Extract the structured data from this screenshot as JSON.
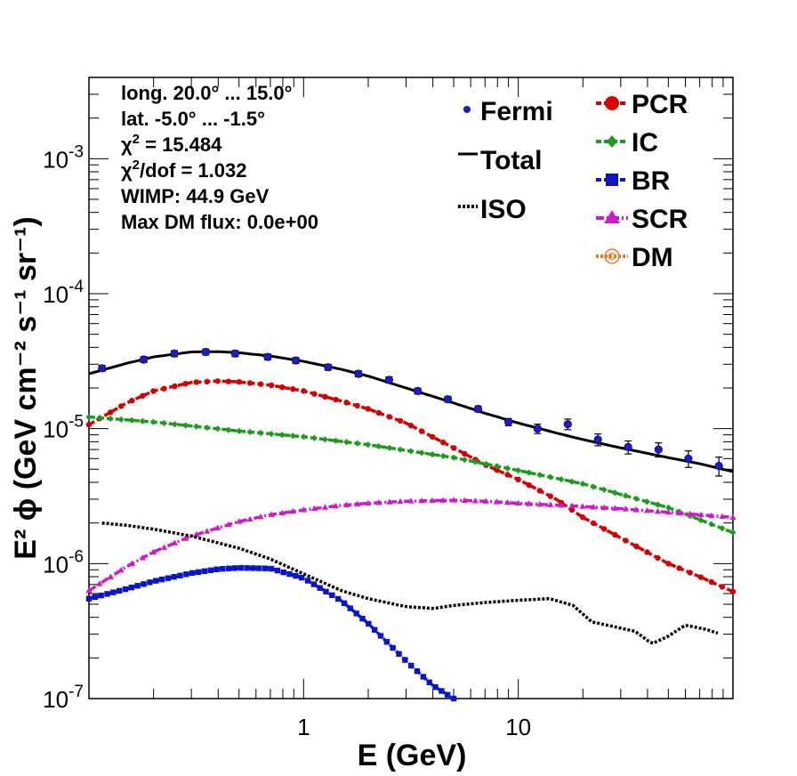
{
  "chart_data": {
    "type": "line",
    "xlabel": "E (GeV)",
    "ylabel": "E² ϕ (GeV cm⁻² s⁻¹ sr⁻¹)",
    "xscale": "log",
    "yscale": "log",
    "xlim": [
      0.1,
      100
    ],
    "ylim": [
      1e-07,
      0.004
    ],
    "x_ticks": [
      {
        "value": 1,
        "label": "1"
      },
      {
        "value": 10,
        "label": "10"
      }
    ],
    "y_ticks": [
      {
        "value": 1e-07,
        "base": "10",
        "exp": "-7"
      },
      {
        "value": 1e-06,
        "base": "10",
        "exp": "-6"
      },
      {
        "value": 1e-05,
        "base": "10",
        "exp": "-5"
      },
      {
        "value": 0.0001,
        "base": "10",
        "exp": "-4"
      },
      {
        "value": 0.001,
        "base": "10",
        "exp": "-3"
      }
    ],
    "info_lines": [
      "long. 20.0° ... 15.0°",
      "lat. -5.0° ... -1.5°",
      "χ² = 15.484",
      "χ²/dof = 1.032",
      "WIMP: 44.9 GeV",
      "Max DM flux: 0.0e+00"
    ],
    "legend_left": [
      {
        "name": "Fermi",
        "marker": "dot",
        "color": "#1c1cc8"
      },
      {
        "name": "Total",
        "marker": "line",
        "color": "#000000"
      },
      {
        "name": "ISO",
        "marker": "dotted",
        "color": "#000000"
      }
    ],
    "legend_right": [
      {
        "name": "PCR",
        "marker": "circle",
        "color": "#d40000"
      },
      {
        "name": "IC",
        "marker": "diamond",
        "color": "#1e9a1e"
      },
      {
        "name": "BR",
        "marker": "square",
        "color": "#0a14c8"
      },
      {
        "name": "SCR",
        "marker": "triangle",
        "color": "#cc1acc"
      },
      {
        "name": "DM",
        "marker": "open-circle",
        "color": "#f07820"
      }
    ],
    "fermi_points": [
      {
        "x": 0.115,
        "y": 2.8e-05,
        "err": 0.05
      },
      {
        "x": 0.18,
        "y": 3.25e-05,
        "err": 0.05
      },
      {
        "x": 0.25,
        "y": 3.6e-05,
        "err": 0.05
      },
      {
        "x": 0.35,
        "y": 3.7e-05,
        "err": 0.05
      },
      {
        "x": 0.48,
        "y": 3.6e-05,
        "err": 0.05
      },
      {
        "x": 0.68,
        "y": 3.4e-05,
        "err": 0.05
      },
      {
        "x": 0.92,
        "y": 3.2e-05,
        "err": 0.05
      },
      {
        "x": 1.3,
        "y": 2.85e-05,
        "err": 0.05
      },
      {
        "x": 1.8,
        "y": 2.55e-05,
        "err": 0.05
      },
      {
        "x": 2.5,
        "y": 2.3e-05,
        "err": 0.05
      },
      {
        "x": 3.4,
        "y": 1.9e-05,
        "err": 0.05
      },
      {
        "x": 4.7,
        "y": 1.65e-05,
        "err": 0.05
      },
      {
        "x": 6.5,
        "y": 1.4e-05,
        "err": 0.05
      },
      {
        "x": 9.0,
        "y": 1.12e-05,
        "err": 0.06
      },
      {
        "x": 12.3,
        "y": 1e-05,
        "err": 0.08
      },
      {
        "x": 17,
        "y": 1.08e-05,
        "err": 0.09
      },
      {
        "x": 23.5,
        "y": 8.3e-06,
        "err": 0.1
      },
      {
        "x": 32.5,
        "y": 7.3e-06,
        "err": 0.11
      },
      {
        "x": 45,
        "y": 7e-06,
        "err": 0.12
      },
      {
        "x": 62,
        "y": 6e-06,
        "err": 0.14
      },
      {
        "x": 86,
        "y": 5.3e-06,
        "err": 0.16
      }
    ],
    "series": [
      {
        "name": "Total",
        "color": "#000000",
        "style": "solid",
        "x": [
          0.1,
          0.15,
          0.2,
          0.3,
          0.4,
          0.5,
          0.7,
          1,
          1.5,
          2,
          3,
          5,
          7,
          10,
          15,
          20,
          30,
          50,
          70,
          100
        ],
        "y": [
          2.55e-05,
          3.05e-05,
          3.4e-05,
          3.7e-05,
          3.72e-05,
          3.65e-05,
          3.45e-05,
          3.15e-05,
          2.75e-05,
          2.45e-05,
          2e-05,
          1.55e-05,
          1.3e-05,
          1.1e-05,
          9.3e-06,
          8.3e-06,
          7.2e-06,
          6.1e-06,
          5.5e-06,
          4.8e-06
        ]
      },
      {
        "name": "PCR",
        "color": "#d40000",
        "style": "dashed",
        "marker": "circle",
        "x": [
          0.1,
          0.15,
          0.2,
          0.3,
          0.4,
          0.5,
          0.7,
          1,
          1.5,
          2,
          3,
          5,
          7,
          10,
          15,
          20,
          30,
          50,
          70,
          100
        ],
        "y": [
          1.07e-05,
          1.55e-05,
          1.9e-05,
          2.2e-05,
          2.25e-05,
          2.22e-05,
          2.1e-05,
          1.9e-05,
          1.6e-05,
          1.4e-05,
          1.1e-05,
          7.2e-06,
          5.4e-06,
          4.2e-06,
          3e-06,
          2.2e-06,
          1.55e-06,
          1e-06,
          8e-07,
          6.2e-07
        ]
      },
      {
        "name": "IC",
        "color": "#1e9a1e",
        "style": "dashed",
        "marker": "diamond",
        "x": [
          0.1,
          0.2,
          0.5,
          1,
          2,
          5,
          10,
          20,
          50,
          100
        ],
        "y": [
          1.22e-05,
          1.12e-05,
          9.6e-06,
          8.7e-06,
          7.6e-06,
          6.1e-06,
          4.9e-06,
          3.9e-06,
          2.6e-06,
          1.7e-06
        ]
      },
      {
        "name": "BR",
        "color": "#0a14c8",
        "style": "dashed",
        "marker": "square",
        "x": [
          0.1,
          0.15,
          0.2,
          0.3,
          0.4,
          0.5,
          0.7,
          1,
          1.5,
          2,
          3,
          4,
          5
        ],
        "y": [
          5.5e-07,
          6.5e-07,
          7.4e-07,
          8.5e-07,
          9.1e-07,
          9.3e-07,
          9.2e-07,
          7.8e-07,
          5.3e-07,
          3.6e-07,
          1.9e-07,
          1.25e-07,
          1e-07
        ]
      },
      {
        "name": "SCR",
        "color": "#cc1acc",
        "style": "dashdot",
        "marker": "triangle",
        "x": [
          0.1,
          0.15,
          0.2,
          0.3,
          0.5,
          0.7,
          1,
          1.5,
          2,
          3,
          5,
          7,
          10,
          20,
          30,
          50,
          100
        ],
        "y": [
          6.3e-07,
          9.5e-07,
          1.22e-06,
          1.6e-06,
          2.05e-06,
          2.3e-06,
          2.5e-06,
          2.7e-06,
          2.8e-06,
          2.9e-06,
          2.95e-06,
          2.9e-06,
          2.8e-06,
          2.65e-06,
          2.55e-06,
          2.4e-06,
          2.2e-06
        ]
      },
      {
        "name": "ISO",
        "color": "#000000",
        "style": "dotted",
        "x": [
          0.115,
          0.15,
          0.2,
          0.3,
          0.5,
          0.7,
          1,
          1.5,
          2,
          3,
          4,
          5,
          7,
          10,
          14,
          18,
          22,
          27,
          35,
          42,
          50,
          60,
          75,
          85
        ],
        "y": [
          2e-06,
          1.92e-06,
          1.8e-06,
          1.6e-06,
          1.3e-06,
          1.08e-06,
          8.4e-07,
          6.3e-07,
          5.5e-07,
          4.8e-07,
          4.65e-07,
          4.9e-07,
          5.15e-07,
          5.35e-07,
          5.5e-07,
          4.9e-07,
          3.7e-07,
          3.45e-07,
          3.15e-07,
          2.55e-07,
          2.9e-07,
          3.5e-07,
          3.25e-07,
          3.05e-07
        ]
      }
    ]
  }
}
